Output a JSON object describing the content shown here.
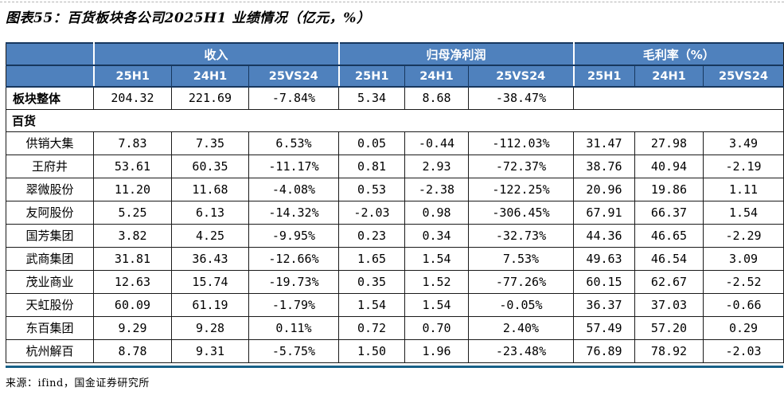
{
  "title": "图表55：百货板块各公司2025H1 业绩情况（亿元，%）",
  "source": "来源：ifind，国金证券研究所",
  "colors": {
    "header_bg": "#4f81bd",
    "header_text": "#ffffff",
    "border_navy": "#17375e",
    "bottom_accent": "#176087"
  },
  "table": {
    "groups": [
      {
        "label": "收入",
        "cols": [
          "25H1",
          "24H1",
          "25VS24"
        ]
      },
      {
        "label": "归母净利润",
        "cols": [
          "25H1",
          "24H1",
          "25VS24"
        ]
      },
      {
        "label": "毛利率（%）",
        "cols": [
          "25H1",
          "24H1",
          "25VS24"
        ]
      }
    ],
    "rows": [
      {
        "type": "total",
        "name": "板块整体",
        "values": [
          "204.32",
          "221.69",
          "-7.84%",
          "5.34",
          "8.68",
          "-38.47%"
        ]
      },
      {
        "type": "section",
        "name": "百货"
      },
      {
        "type": "data",
        "name": "供销大集",
        "values": [
          "7.83",
          "7.35",
          "6.53%",
          "0.05",
          "-0.44",
          "-112.03%",
          "31.47",
          "27.98",
          "3.49"
        ]
      },
      {
        "type": "data",
        "name": "王府井",
        "values": [
          "53.61",
          "60.35",
          "-11.17%",
          "0.81",
          "2.93",
          "-72.37%",
          "38.76",
          "40.94",
          "-2.19"
        ]
      },
      {
        "type": "data",
        "name": "翠微股份",
        "values": [
          "11.20",
          "11.68",
          "-4.08%",
          "0.53",
          "-2.38",
          "-122.25%",
          "20.96",
          "19.86",
          "1.11"
        ]
      },
      {
        "type": "data",
        "name": "友阿股份",
        "values": [
          "5.25",
          "6.13",
          "-14.32%",
          "-2.03",
          "0.98",
          "-306.45%",
          "67.91",
          "66.37",
          "1.54"
        ]
      },
      {
        "type": "data",
        "name": "国芳集团",
        "values": [
          "3.82",
          "4.25",
          "-9.95%",
          "0.23",
          "0.34",
          "-32.73%",
          "44.36",
          "46.65",
          "-2.29"
        ]
      },
      {
        "type": "data",
        "name": "武商集团",
        "values": [
          "31.81",
          "36.43",
          "-12.66%",
          "1.65",
          "1.54",
          "7.53%",
          "49.63",
          "46.54",
          "3.09"
        ]
      },
      {
        "type": "data",
        "name": "茂业商业",
        "values": [
          "12.63",
          "15.74",
          "-19.73%",
          "0.35",
          "1.52",
          "-77.26%",
          "60.15",
          "62.67",
          "-2.52"
        ]
      },
      {
        "type": "data",
        "name": "天虹股份",
        "values": [
          "60.09",
          "61.19",
          "-1.79%",
          "1.54",
          "1.54",
          "-0.05%",
          "36.37",
          "37.03",
          "-0.66"
        ]
      },
      {
        "type": "data",
        "name": "东百集团",
        "values": [
          "9.29",
          "9.28",
          "0.11%",
          "0.72",
          "0.70",
          "2.40%",
          "57.49",
          "57.20",
          "0.29"
        ]
      },
      {
        "type": "data",
        "name": "杭州解百",
        "values": [
          "8.78",
          "9.31",
          "-5.75%",
          "1.50",
          "1.96",
          "-23.48%",
          "76.89",
          "78.92",
          "-2.03"
        ]
      }
    ]
  }
}
